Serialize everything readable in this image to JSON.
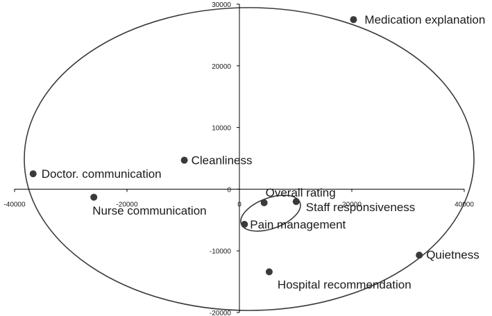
{
  "chart_data": {
    "type": "scatter",
    "title": "",
    "xlabel": "",
    "ylabel": "",
    "xlim": [
      -40000,
      40000
    ],
    "ylim": [
      -20000,
      30000
    ],
    "x_ticks": [
      -40000,
      -20000,
      0,
      20000,
      40000
    ],
    "y_ticks": [
      -20000,
      -10000,
      0,
      10000,
      20000,
      30000
    ],
    "x_tick_labels": [
      "-40000",
      "-20000",
      "0",
      "20000",
      "40000"
    ],
    "y_tick_labels": [
      "-20000",
      "-10000",
      "0",
      "10000",
      "20000",
      "30000"
    ],
    "grid": false,
    "legend": "none",
    "point_color": "#3a3a3a",
    "points": [
      {
        "label": "Medication explanation",
        "x": 20300,
        "y": 27500
      },
      {
        "label": "Cleanliness",
        "x": -9800,
        "y": 4700
      },
      {
        "label": "Doctor. communication",
        "x": -36700,
        "y": 2500
      },
      {
        "label": "Nurse communication",
        "x": -25900,
        "y": -1300
      },
      {
        "label": "Overall rating",
        "x": 4400,
        "y": -2200
      },
      {
        "label": "Staff responsiveness",
        "x": 10100,
        "y": -2000
      },
      {
        "label": "Pain management",
        "x": 900,
        "y": -5700
      },
      {
        "label": "Quietness",
        "x": 32000,
        "y": -10700
      },
      {
        "label": "Hospital recommendation",
        "x": 5300,
        "y": -13400
      }
    ]
  }
}
